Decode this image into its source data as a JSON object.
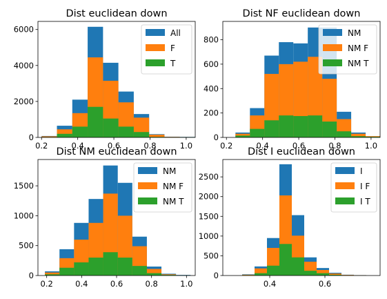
{
  "colors": {
    "blue": "#1f77b4",
    "orange": "#ff7f0e",
    "green": "#2ca02c"
  },
  "chart_data": [
    {
      "type": "bar",
      "title": "Dist euclidean down",
      "legend_position": "top-right",
      "xlim": [
        0.18,
        1.05
      ],
      "ylim": [
        0,
        6450
      ],
      "xticks": [
        0.2,
        0.4,
        0.6,
        0.8,
        1.0
      ],
      "xtick_labels": [
        "0.2",
        "0.4",
        "0.6",
        "0.8",
        "1.0"
      ],
      "yticks": [
        0,
        2000,
        4000,
        6000
      ],
      "ytick_labels": [
        "0",
        "2000",
        "4000",
        "6000"
      ],
      "bin_edges": [
        0.2,
        0.285,
        0.37,
        0.455,
        0.54,
        0.625,
        0.71,
        0.795,
        0.88,
        0.965,
        1.05
      ],
      "series": [
        {
          "name": "All",
          "color": "blue",
          "values": [
            80,
            650,
            2100,
            6150,
            4150,
            2550,
            1300,
            180,
            40,
            30
          ]
        },
        {
          "name": "F",
          "color": "orange",
          "values": [
            60,
            450,
            1350,
            4450,
            3150,
            1950,
            1100,
            150,
            30,
            20
          ]
        },
        {
          "name": "T",
          "color": "green",
          "values": [
            20,
            200,
            600,
            1700,
            1050,
            600,
            300,
            30,
            10,
            10
          ]
        }
      ]
    },
    {
      "type": "bar",
      "title": "Dist NF euclidean down",
      "legend_position": "top-right",
      "xlim": [
        0.18,
        1.05
      ],
      "ylim": [
        0,
        950
      ],
      "xticks": [
        0.2,
        0.4,
        0.6,
        0.8,
        1.0
      ],
      "xtick_labels": [
        "0.2",
        "0.4",
        "0.6",
        "0.8",
        "1.0"
      ],
      "yticks": [
        0,
        200,
        400,
        600,
        800
      ],
      "ytick_labels": [
        "0",
        "200",
        "400",
        "600",
        "800"
      ],
      "bin_edges": [
        0.25,
        0.33,
        0.41,
        0.49,
        0.57,
        0.65,
        0.73,
        0.81,
        0.89,
        0.97,
        1.05
      ],
      "series": [
        {
          "name": "NM",
          "color": "blue",
          "values": [
            40,
            240,
            670,
            780,
            770,
            900,
            900,
            210,
            40,
            10
          ]
        },
        {
          "name": "NM F",
          "color": "orange",
          "values": [
            30,
            180,
            520,
            600,
            620,
            660,
            480,
            150,
            30,
            10
          ]
        },
        {
          "name": "NM T",
          "color": "green",
          "values": [
            15,
            70,
            140,
            180,
            175,
            180,
            130,
            50,
            10,
            5
          ]
        }
      ]
    },
    {
      "type": "bar",
      "title": "Dist NM euclidean down",
      "legend_position": "top-right",
      "xlim": [
        0.15,
        1.05
      ],
      "ylim": [
        0,
        1940
      ],
      "xticks": [
        0.2,
        0.4,
        0.6,
        0.8,
        1.0
      ],
      "xtick_labels": [
        "0.2",
        "0.4",
        "0.6",
        "0.8",
        "1.0"
      ],
      "yticks": [
        0,
        500,
        1000,
        1500
      ],
      "ytick_labels": [
        "0",
        "500",
        "1000",
        "1500"
      ],
      "bin_edges": [
        0.19,
        0.2733,
        0.3567,
        0.44,
        0.5233,
        0.6067,
        0.69,
        0.7733,
        0.8567,
        0.94,
        1.0233
      ],
      "series": [
        {
          "name": "NM",
          "color": "blue",
          "values": [
            70,
            440,
            880,
            1280,
            1840,
            1550,
            650,
            150,
            30,
            10
          ]
        },
        {
          "name": "NM F",
          "color": "orange",
          "values": [
            50,
            290,
            600,
            880,
            1370,
            1000,
            490,
            110,
            20,
            5
          ]
        },
        {
          "name": "NM T",
          "color": "green",
          "values": [
            20,
            130,
            220,
            300,
            390,
            300,
            160,
            40,
            10,
            3
          ]
        }
      ]
    },
    {
      "type": "bar",
      "title": "Dist I euclidean down",
      "legend_position": "top-right",
      "xlim": [
        0.23,
        0.8
      ],
      "ylim": [
        0,
        2940
      ],
      "xticks": [
        0.4,
        0.6
      ],
      "xtick_labels": [
        "0.4",
        "0.6"
      ],
      "yticks": [
        0,
        500,
        1000,
        1500,
        2000,
        2500
      ],
      "ytick_labels": [
        "0",
        "500",
        "1000",
        "1500",
        "2000",
        "2500"
      ],
      "bin_edges": [
        0.3,
        0.345,
        0.39,
        0.435,
        0.48,
        0.525,
        0.57,
        0.615,
        0.66,
        0.705,
        0.75
      ],
      "series": [
        {
          "name": "I",
          "color": "blue",
          "values": [
            30,
            230,
            950,
            2820,
            1530,
            460,
            190,
            70,
            20,
            10
          ]
        },
        {
          "name": "I F",
          "color": "orange",
          "values": [
            20,
            180,
            700,
            2030,
            1010,
            350,
            140,
            50,
            15,
            8
          ]
        },
        {
          "name": "I T",
          "color": "green",
          "values": [
            10,
            60,
            250,
            800,
            460,
            120,
            60,
            20,
            5,
            2
          ]
        }
      ]
    }
  ]
}
